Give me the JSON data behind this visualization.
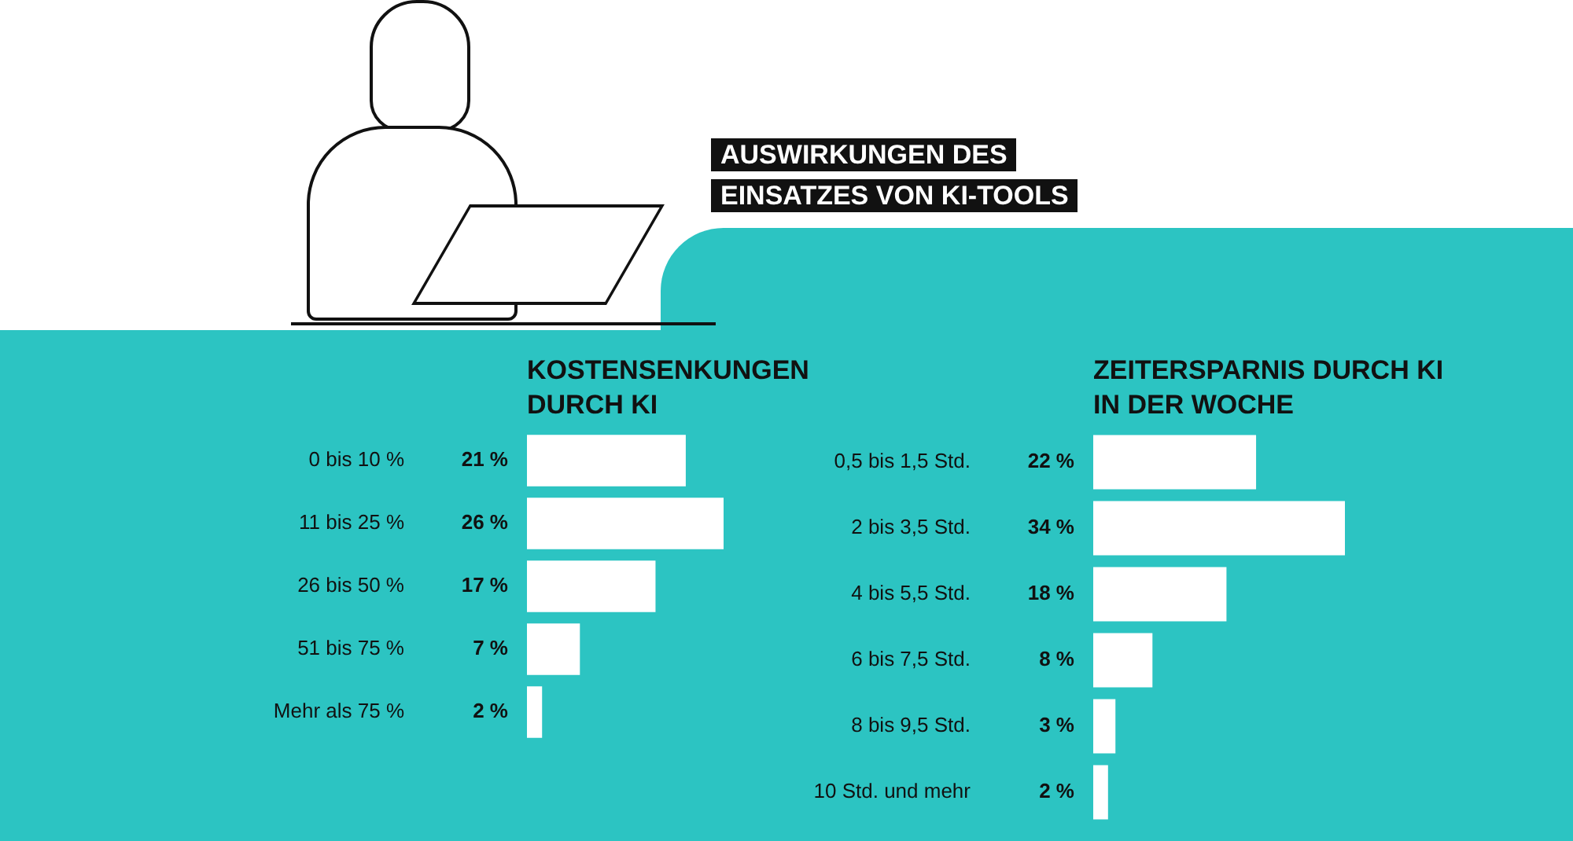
{
  "chart_data": [
    {
      "type": "other",
      "title": "AUSWIRKUNGEN DES EINSATZES VON KI-TOOLS"
    },
    {
      "type": "bar",
      "orientation": "horizontal",
      "title": "KOSTENSENKUNGEN DURCH KI",
      "categories": [
        "0 bis 10 %",
        "11 bis 25 %",
        "26 bis 50 %",
        "51 bis 75 %",
        "Mehr als 75 %"
      ],
      "values": [
        21,
        26,
        17,
        7,
        2
      ],
      "value_labels": [
        "21 %",
        "26 %",
        "17 %",
        "7 %",
        "2 %"
      ],
      "color": "#ffffff"
    },
    {
      "type": "bar",
      "orientation": "horizontal",
      "title": "ZEITERSPARNIS DURCH KI IN DER WOCHE",
      "categories": [
        "0,5 bis 1,5 Std.",
        "2 bis 3,5 Std.",
        "4 bis 5,5 Std.",
        "6 bis 7,5 Std.",
        "8 bis 9,5 Std.",
        "10 Std. und mehr"
      ],
      "values": [
        22,
        34,
        18,
        8,
        3,
        2
      ],
      "value_labels": [
        "22 %",
        "34 %",
        "18 %",
        "8 %",
        "3 %",
        "2 %"
      ],
      "color": "#ffffff"
    }
  ]
}
